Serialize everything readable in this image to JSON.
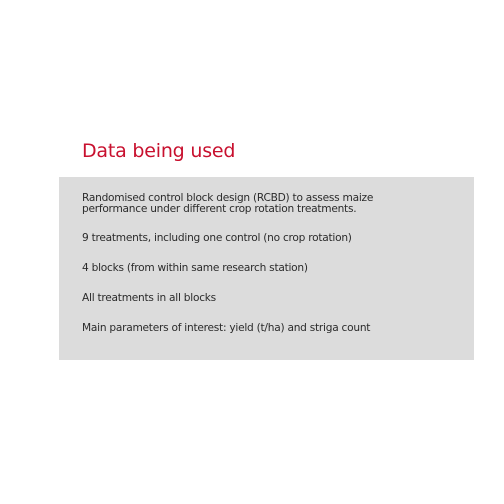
{
  "slide": {
    "title": "Data being used",
    "paragraphs": [
      {
        "lines": [
          "Randomised control block design (RCBD) to assess maize",
          "performance under different crop rotation treatments."
        ]
      },
      {
        "text": "9 treatments, including one control (no crop rotation)"
      },
      {
        "text": "4 blocks (from within same research station)"
      },
      {
        "text": "All treatments in all blocks"
      },
      {
        "text": "Main parameters of interest: yield (t/ha) and striga count"
      }
    ]
  },
  "colors": {
    "title": "#c8102e",
    "panel_background": "#dcdcdc",
    "body_text": "#2b2b2b",
    "page_background": "#ffffff"
  }
}
